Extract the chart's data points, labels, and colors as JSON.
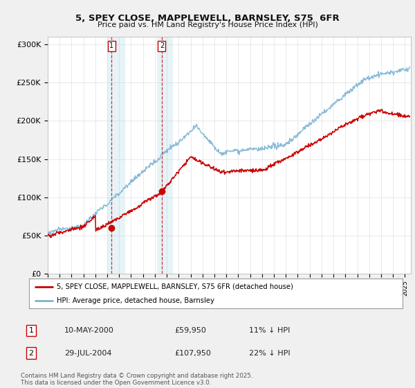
{
  "title_line1": "5, SPEY CLOSE, MAPPLEWELL, BARNSLEY, S75  6FR",
  "title_line2": "Price paid vs. HM Land Registry's House Price Index (HPI)",
  "ylabel_ticks": [
    "£0",
    "£50K",
    "£100K",
    "£150K",
    "£200K",
    "£250K",
    "£300K"
  ],
  "ytick_values": [
    0,
    50000,
    100000,
    150000,
    200000,
    250000,
    300000
  ],
  "ylim": [
    0,
    310000
  ],
  "xlim_start": 1995.0,
  "xlim_end": 2025.5,
  "hpi_color": "#7ab3d3",
  "price_color": "#cc0000",
  "marker1_date": 2000.36,
  "marker1_price": 59950,
  "marker2_date": 2004.58,
  "marker2_price": 107950,
  "legend_label1": "5, SPEY CLOSE, MAPPLEWELL, BARNSLEY, S75 6FR (detached house)",
  "legend_label2": "HPI: Average price, detached house, Barnsley",
  "sale1_label": "1",
  "sale1_date": "10-MAY-2000",
  "sale1_price": "£59,950",
  "sale1_hpi": "11% ↓ HPI",
  "sale2_label": "2",
  "sale2_date": "29-JUL-2004",
  "sale2_price": "£107,950",
  "sale2_hpi": "22% ↓ HPI",
  "footer": "Contains HM Land Registry data © Crown copyright and database right 2025.\nThis data is licensed under the Open Government Licence v3.0.",
  "background_color": "#f0f0f0",
  "plot_bg_color": "#ffffff",
  "vline_color": "#cc0000",
  "shade_color": "#add8e6",
  "shade_alpha": 0.3,
  "vline1_x": 2000.36,
  "vline2_x": 2004.58,
  "shade1_start": 2000.0,
  "shade1_end": 2001.5,
  "shade2_start": 2004.2,
  "shade2_end": 2005.5
}
